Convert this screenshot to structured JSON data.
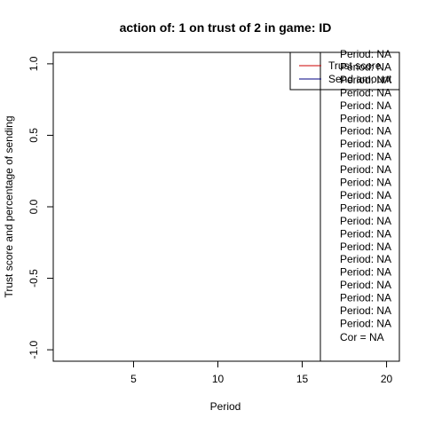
{
  "chart_data": {
    "type": "line",
    "title": "action of:  1  on trust of  2 in game:  ID",
    "xlabel": "Period",
    "ylabel": "Trust score and percentage of sending",
    "xlim": [
      0.24,
      20.76
    ],
    "ylim": [
      -1.08,
      1.08
    ],
    "x_ticks": [
      5,
      10,
      15,
      20
    ],
    "x_tick_labels": [
      "5",
      "10",
      "15",
      "20"
    ],
    "y_ticks": [
      -1.0,
      -0.5,
      0.0,
      0.5,
      1.0
    ],
    "y_tick_labels": [
      "-1.0",
      "-0.5",
      "0.0",
      "0.5",
      "1.0"
    ],
    "grid": false,
    "legend_position": "top-right",
    "series": [
      {
        "name": "Trust score",
        "color": "#cc0000",
        "values": []
      },
      {
        "name": "Send amount",
        "color": "#000080",
        "values": []
      }
    ],
    "annotations": {
      "period_lines": [
        "Period:  NA",
        "Period:  NA",
        "Period:  NA",
        "Period:  NA",
        "Period:  NA",
        "Period:  NA",
        "Period:  NA",
        "Period:  NA",
        "Period:  NA",
        "Period:  NA",
        "Period:  NA",
        "Period:  NA",
        "Period:  NA",
        "Period:  NA",
        "Period:  NA",
        "Period:  NA",
        "Period:  NA",
        "Period:  NA",
        "Period:  NA",
        "Period:  NA",
        "Period:  NA",
        "Period:  NA"
      ],
      "cor_text": "Cor =  NA"
    }
  }
}
